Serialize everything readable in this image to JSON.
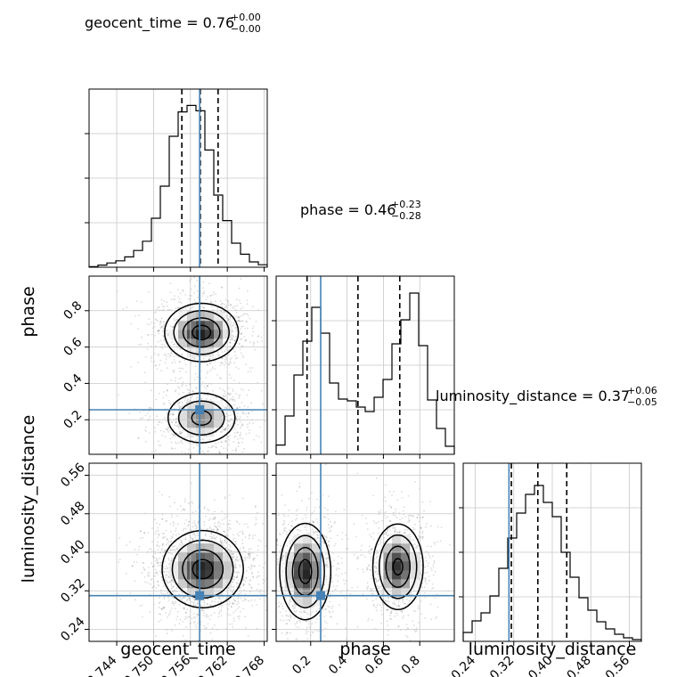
{
  "chart_data": {
    "type": "corner",
    "params": [
      "geocent_time",
      "phase",
      "luminosity_distance"
    ],
    "axis_labels": [
      "geocent_time",
      "phase",
      "luminosity_distance"
    ],
    "titles": [
      {
        "name": "geocent_time",
        "text": "geocent_time = 0.76",
        "sup": "+0.00",
        "sub": "−0.00"
      },
      {
        "name": "phase",
        "text": "phase = 0.46",
        "sup": "+0.23",
        "sub": "−0.28"
      },
      {
        "name": "luminosity_distance",
        "text": "luminosity_distance = 0.37",
        "sup": "+0.06",
        "sub": "−0.05"
      }
    ],
    "ranges": [
      [
        0.7395,
        0.7685
      ],
      [
        0.01,
        0.99
      ],
      [
        0.215,
        0.585
      ]
    ],
    "ticks": [
      [
        0.744,
        0.75,
        0.756,
        0.762,
        0.768
      ],
      [
        0.2,
        0.4,
        0.6,
        0.8
      ],
      [
        0.24,
        0.32,
        0.4,
        0.48,
        0.56
      ]
    ],
    "tick_labels": [
      [
        "0.744",
        "0.750",
        "0.756",
        "0.762",
        "0.768"
      ],
      [
        "0.2",
        "0.4",
        "0.6",
        "0.8"
      ],
      [
        "0.24",
        "0.32",
        "0.40",
        "0.48",
        "0.56"
      ]
    ],
    "truths": [
      0.7575,
      0.255,
      0.31
    ],
    "quantiles": [
      [
        0.7546,
        0.7576,
        0.7605
      ],
      [
        0.18,
        0.46,
        0.69
      ],
      [
        0.315,
        0.37,
        0.43
      ]
    ],
    "histograms": [
      [
        0.003,
        0.012,
        0.024,
        0.036,
        0.058,
        0.094,
        0.146,
        0.275,
        0.455,
        0.735,
        0.872,
        0.908,
        0.878,
        0.658,
        0.405,
        0.262,
        0.135,
        0.073,
        0.03,
        0.014
      ],
      [
        0.052,
        0.215,
        0.445,
        0.635,
        0.825,
        0.68,
        0.4,
        0.31,
        0.3,
        0.265,
        0.24,
        0.32,
        0.42,
        0.62,
        0.755,
        0.905,
        0.61,
        0.305,
        0.145,
        0.045
      ],
      [
        0.05,
        0.115,
        0.16,
        0.255,
        0.41,
        0.58,
        0.72,
        0.825,
        0.875,
        0.78,
        0.7,
        0.5,
        0.36,
        0.245,
        0.175,
        0.11,
        0.07,
        0.04,
        0.02,
        0.01
      ]
    ],
    "hist_ylim": [
      0,
      1.0
    ],
    "truth_color": "#4682b4",
    "grid": true,
    "contour_levels": [
      0.5,
      1.0,
      1.5,
      2.0
    ],
    "modes": [
      [
        {
          "mx": 0.7578,
          "my": 0.68,
          "sx": 0.003,
          "sy": 0.08,
          "w": 1.0
        },
        {
          "mx": 0.7578,
          "my": 0.21,
          "sx": 0.003,
          "sy": 0.075,
          "w": 0.7
        }
      ],
      [
        {
          "mx": 0.758,
          "my": 0.365,
          "sx": 0.0033,
          "sy": 0.04,
          "w": 1.0
        }
      ],
      [
        {
          "mx": 0.17,
          "my": 0.36,
          "sx": 0.07,
          "sy": 0.05,
          "w": 1.0
        },
        {
          "mx": 0.68,
          "my": 0.37,
          "sx": 0.07,
          "sy": 0.045,
          "w": 0.95
        }
      ]
    ]
  }
}
